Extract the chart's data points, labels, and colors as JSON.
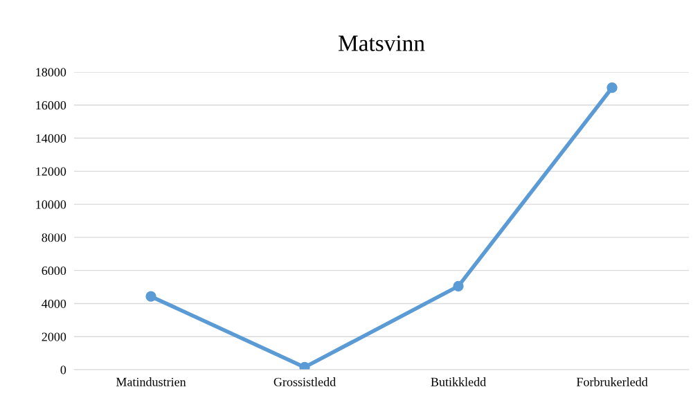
{
  "chart_data": {
    "type": "line",
    "title": "Matsvinn",
    "categories": [
      "Matindustrien",
      "Grossistledd",
      "Butikkledd",
      "Forbrukerledd"
    ],
    "series": [
      {
        "color": "#5b9bd5",
        "values": [
          4430,
          150,
          5050,
          17050
        ]
      }
    ],
    "ylim": [
      0,
      18000
    ],
    "yticks": [
      0,
      2000,
      4000,
      6000,
      8000,
      10000,
      12000,
      14000,
      16000,
      18000
    ],
    "grid": "y",
    "marker": "circle",
    "line_style": "solid"
  }
}
